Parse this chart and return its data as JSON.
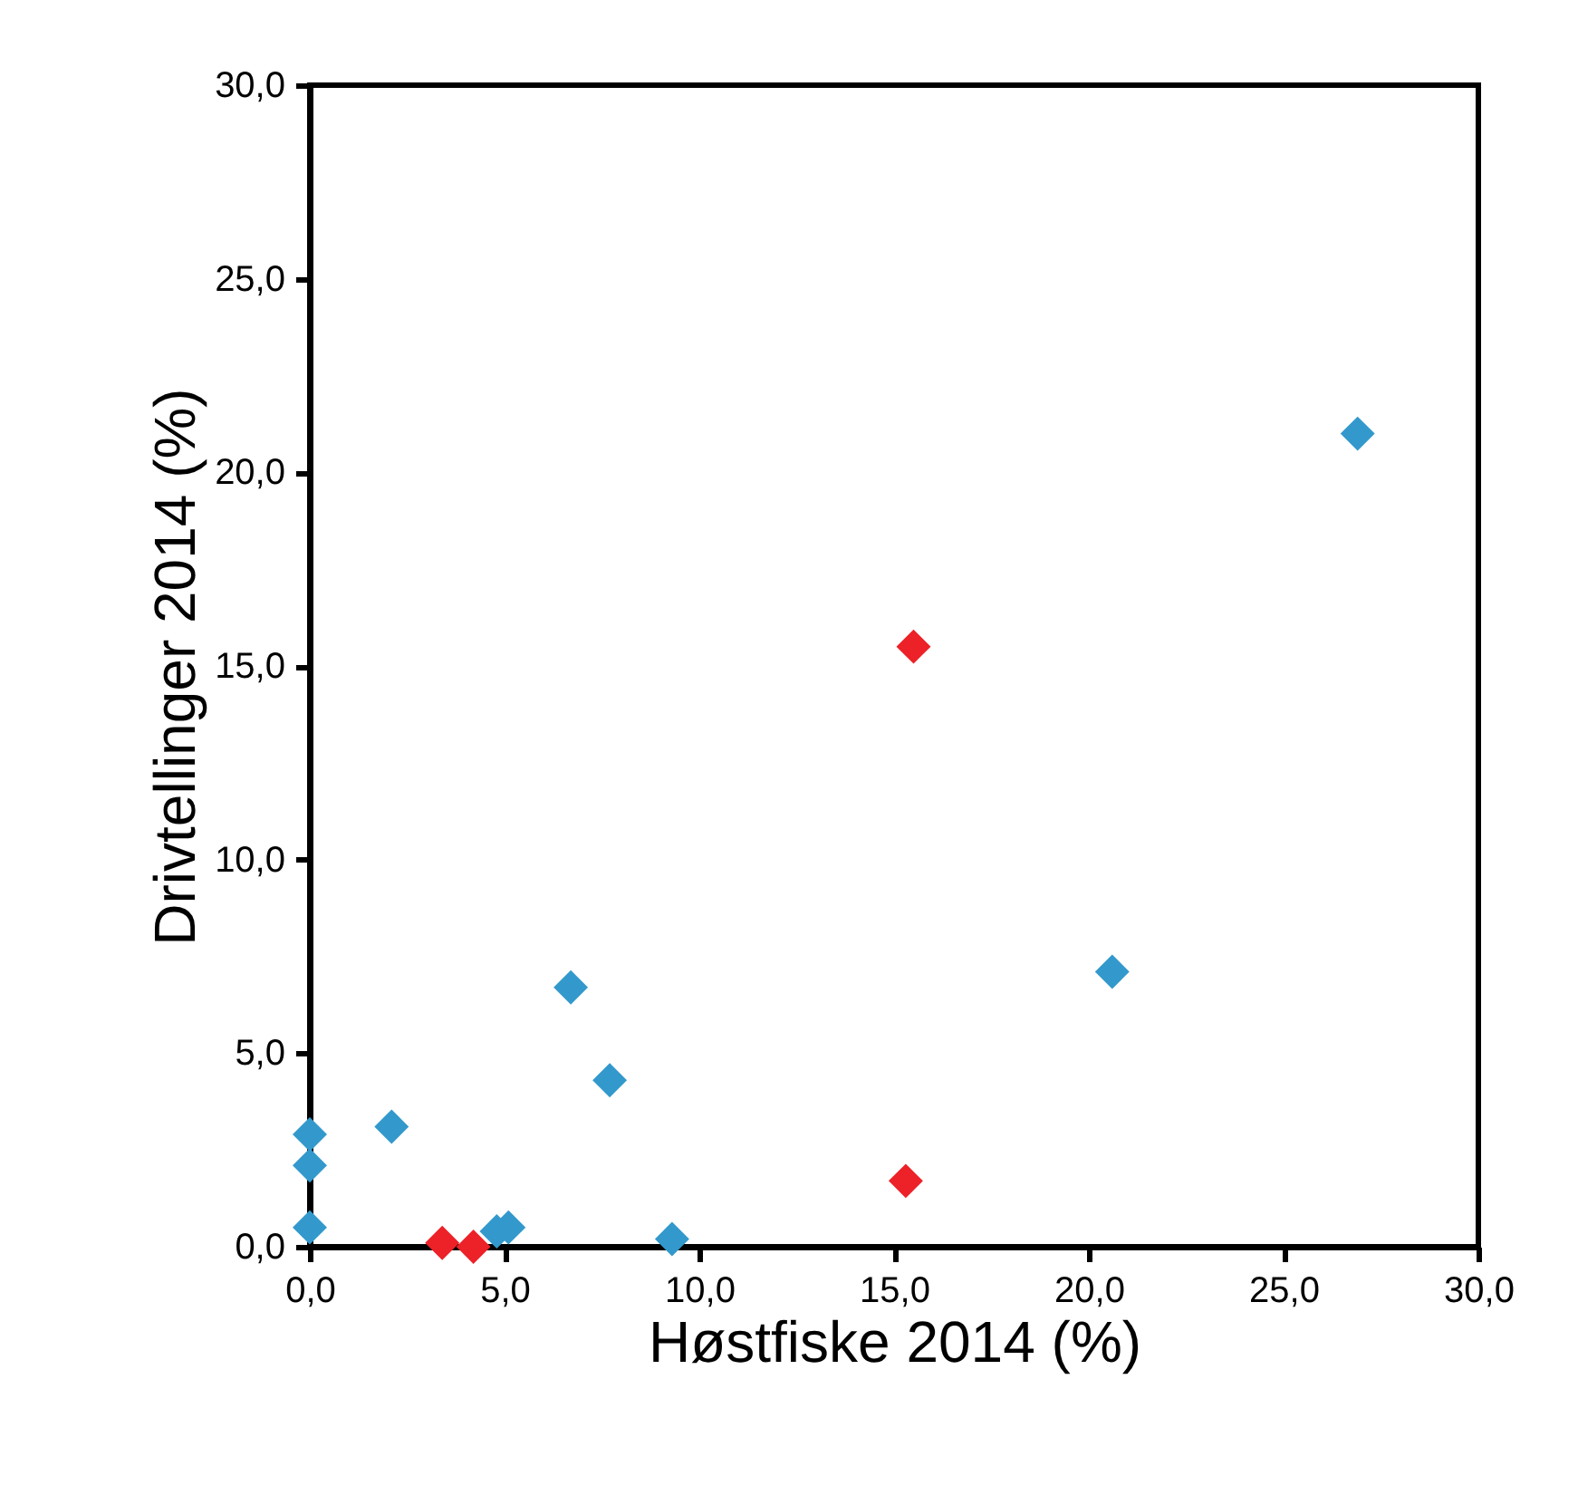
{
  "chart_data": {
    "type": "scatter",
    "xlabel": "Høstfiske 2014 (%)",
    "ylabel": "Drivtellinger 2014 (%)",
    "xlim": [
      0,
      30
    ],
    "ylim": [
      0,
      30
    ],
    "xticks": [
      {
        "value": 0,
        "label": "0,0"
      },
      {
        "value": 5,
        "label": "5,0"
      },
      {
        "value": 10,
        "label": "10,0"
      },
      {
        "value": 15,
        "label": "15,0"
      },
      {
        "value": 20,
        "label": "20,0"
      },
      {
        "value": 25,
        "label": "25,0"
      },
      {
        "value": 30,
        "label": "30,0"
      }
    ],
    "yticks": [
      {
        "value": 0,
        "label": "0,0"
      },
      {
        "value": 5,
        "label": "5,0"
      },
      {
        "value": 10,
        "label": "10,0"
      },
      {
        "value": 15,
        "label": "15,0"
      },
      {
        "value": 20,
        "label": "20,0"
      },
      {
        "value": 25,
        "label": "25,0"
      },
      {
        "value": 30,
        "label": "30,0"
      }
    ],
    "marker": "diamond",
    "grid": false,
    "series": [
      {
        "color": "#3399cc",
        "x": [
          0,
          0,
          0,
          2.1,
          6.7,
          7.7,
          4.8,
          5.1,
          9.3,
          26.9,
          20.6
        ],
        "values": [
          2.9,
          2.1,
          0.5,
          3.1,
          6.7,
          4.3,
          0.4,
          0.5,
          0.2,
          21.0,
          7.1
        ]
      },
      {
        "color": "#ed2128",
        "x": [
          3.4,
          4.2,
          15.5,
          15.3
        ],
        "values": [
          0.1,
          0.0,
          15.5,
          1.7
        ]
      }
    ]
  }
}
